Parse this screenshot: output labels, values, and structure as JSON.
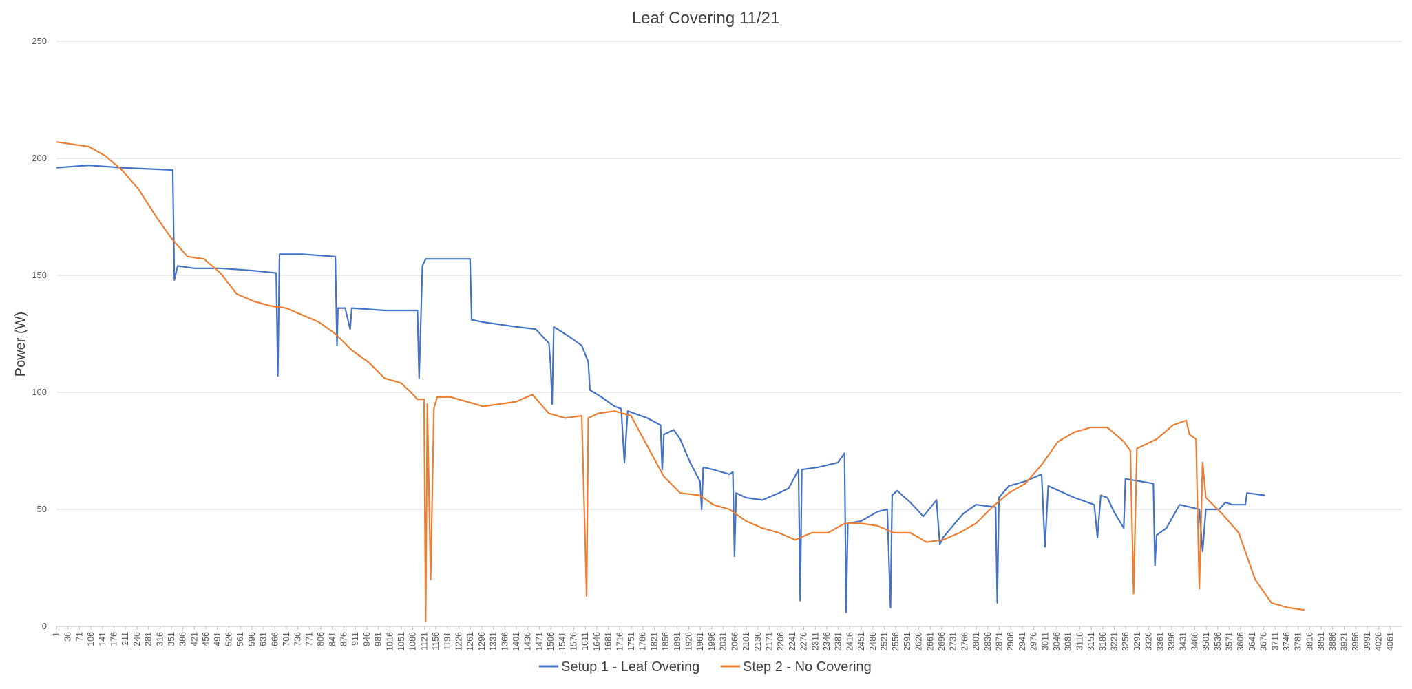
{
  "chart_data": {
    "type": "line",
    "title": "Leaf Covering 11/21",
    "ylabel": "Power (W)",
    "xlabel": "",
    "ylim": [
      0,
      250
    ],
    "yticks": [
      0,
      50,
      100,
      150,
      200,
      250
    ],
    "grid": "horizontal",
    "legend_position": "bottom",
    "x_range": [
      1,
      4096
    ],
    "x_tick_labels": [
      "1",
      "36",
      "71",
      "106",
      "141",
      "176",
      "211",
      "246",
      "281",
      "316",
      "351",
      "386",
      "421",
      "456",
      "491",
      "526",
      "561",
      "596",
      "631",
      "666",
      "701",
      "736",
      "771",
      "806",
      "841",
      "876",
      "911",
      "946",
      "981",
      "1016",
      "1051",
      "1086",
      "1121",
      "1156",
      "1191",
      "1226",
      "1261",
      "1296",
      "1331",
      "1366",
      "1401",
      "1436",
      "1471",
      "1506",
      "1541",
      "1576",
      "1611",
      "1646",
      "1681",
      "1716",
      "1751",
      "1786",
      "1821",
      "1856",
      "1891",
      "1926",
      "1961",
      "1996",
      "2031",
      "2066",
      "2101",
      "2136",
      "2171",
      "2206",
      "2241",
      "2276",
      "2311",
      "2346",
      "2381",
      "2416",
      "2451",
      "2486",
      "2521",
      "2556",
      "2591",
      "2626",
      "2661",
      "2696",
      "2731",
      "2766",
      "2801",
      "2836",
      "2871",
      "2906",
      "2941",
      "2976",
      "3011",
      "3046",
      "3081",
      "3116",
      "3151",
      "3186",
      "3221",
      "3256",
      "3291",
      "3326",
      "3361",
      "3396",
      "3431",
      "3466",
      "3501",
      "3536",
      "3571",
      "3606",
      "3641",
      "3676",
      "3711",
      "3746",
      "3781",
      "3816",
      "3851",
      "3886",
      "3921",
      "3956",
      "3991",
      "4026",
      "4061"
    ],
    "series": [
      {
        "name": "Setup 1 - Leaf Overing",
        "color": "#4472C4",
        "points": [
          [
            1,
            196
          ],
          [
            100,
            197
          ],
          [
            200,
            196
          ],
          [
            355,
            195
          ],
          [
            360,
            148
          ],
          [
            370,
            154
          ],
          [
            420,
            153
          ],
          [
            500,
            153
          ],
          [
            600,
            152
          ],
          [
            670,
            151
          ],
          [
            675,
            107
          ],
          [
            680,
            159
          ],
          [
            750,
            159
          ],
          [
            850,
            158
          ],
          [
            855,
            120
          ],
          [
            858,
            136
          ],
          [
            880,
            136
          ],
          [
            895,
            127
          ],
          [
            900,
            136
          ],
          [
            1000,
            135
          ],
          [
            1100,
            135
          ],
          [
            1105,
            106
          ],
          [
            1115,
            154
          ],
          [
            1125,
            157
          ],
          [
            1200,
            157
          ],
          [
            1260,
            157
          ],
          [
            1265,
            131
          ],
          [
            1300,
            130
          ],
          [
            1400,
            128
          ],
          [
            1460,
            127
          ],
          [
            1500,
            121
          ],
          [
            1505,
            112
          ],
          [
            1510,
            95
          ],
          [
            1515,
            128
          ],
          [
            1560,
            124
          ],
          [
            1600,
            120
          ],
          [
            1620,
            113
          ],
          [
            1625,
            101
          ],
          [
            1660,
            98
          ],
          [
            1700,
            94
          ],
          [
            1720,
            93
          ],
          [
            1730,
            70
          ],
          [
            1740,
            92
          ],
          [
            1800,
            89
          ],
          [
            1840,
            86
          ],
          [
            1845,
            67
          ],
          [
            1850,
            82
          ],
          [
            1880,
            84
          ],
          [
            1900,
            80
          ],
          [
            1930,
            70
          ],
          [
            1960,
            62
          ],
          [
            1965,
            50
          ],
          [
            1970,
            68
          ],
          [
            2000,
            67
          ],
          [
            2050,
            65
          ],
          [
            2060,
            66
          ],
          [
            2065,
            30
          ],
          [
            2070,
            57
          ],
          [
            2100,
            55
          ],
          [
            2150,
            54
          ],
          [
            2200,
            57
          ],
          [
            2230,
            59
          ],
          [
            2260,
            67
          ],
          [
            2265,
            11
          ],
          [
            2270,
            67
          ],
          [
            2320,
            68
          ],
          [
            2380,
            70
          ],
          [
            2400,
            74
          ],
          [
            2405,
            6
          ],
          [
            2410,
            44
          ],
          [
            2450,
            45
          ],
          [
            2500,
            49
          ],
          [
            2530,
            50
          ],
          [
            2540,
            8
          ],
          [
            2545,
            56
          ],
          [
            2560,
            58
          ],
          [
            2600,
            53
          ],
          [
            2640,
            47
          ],
          [
            2680,
            54
          ],
          [
            2690,
            35
          ],
          [
            2700,
            38
          ],
          [
            2760,
            48
          ],
          [
            2800,
            52
          ],
          [
            2860,
            51
          ],
          [
            2865,
            10
          ],
          [
            2870,
            55
          ],
          [
            2900,
            60
          ],
          [
            2950,
            62
          ],
          [
            3000,
            65
          ],
          [
            3010,
            34
          ],
          [
            3020,
            60
          ],
          [
            3100,
            55
          ],
          [
            3160,
            52
          ],
          [
            3170,
            38
          ],
          [
            3180,
            56
          ],
          [
            3200,
            55
          ],
          [
            3220,
            49
          ],
          [
            3250,
            42
          ],
          [
            3255,
            63
          ],
          [
            3300,
            62
          ],
          [
            3340,
            61
          ],
          [
            3345,
            26
          ],
          [
            3350,
            39
          ],
          [
            3380,
            42
          ],
          [
            3420,
            52
          ],
          [
            3450,
            51
          ],
          [
            3480,
            50
          ],
          [
            3490,
            32
          ],
          [
            3500,
            50
          ],
          [
            3540,
            50
          ],
          [
            3560,
            53
          ],
          [
            3580,
            52
          ],
          [
            3620,
            52
          ],
          [
            3625,
            57
          ],
          [
            3680,
            56
          ]
        ]
      },
      {
        "name": "Step 2 - No Covering",
        "color": "#ED7D31",
        "points": [
          [
            1,
            207
          ],
          [
            100,
            205
          ],
          [
            150,
            201
          ],
          [
            200,
            195
          ],
          [
            250,
            187
          ],
          [
            300,
            176
          ],
          [
            350,
            166
          ],
          [
            400,
            158
          ],
          [
            450,
            157
          ],
          [
            500,
            151
          ],
          [
            550,
            142
          ],
          [
            600,
            139
          ],
          [
            650,
            137
          ],
          [
            700,
            136
          ],
          [
            750,
            133
          ],
          [
            800,
            130
          ],
          [
            850,
            125
          ],
          [
            900,
            118
          ],
          [
            950,
            113
          ],
          [
            1000,
            106
          ],
          [
            1050,
            104
          ],
          [
            1080,
            100
          ],
          [
            1100,
            97
          ],
          [
            1120,
            97
          ],
          [
            1125,
            2
          ],
          [
            1130,
            95
          ],
          [
            1140,
            20
          ],
          [
            1150,
            93
          ],
          [
            1160,
            98
          ],
          [
            1200,
            98
          ],
          [
            1250,
            96
          ],
          [
            1300,
            94
          ],
          [
            1350,
            95
          ],
          [
            1400,
            96
          ],
          [
            1450,
            99
          ],
          [
            1500,
            91
          ],
          [
            1550,
            89
          ],
          [
            1600,
            90
          ],
          [
            1615,
            13
          ],
          [
            1620,
            89
          ],
          [
            1650,
            91
          ],
          [
            1700,
            92
          ],
          [
            1750,
            90
          ],
          [
            1800,
            77
          ],
          [
            1850,
            64
          ],
          [
            1900,
            57
          ],
          [
            1960,
            56
          ],
          [
            2000,
            52
          ],
          [
            2050,
            50
          ],
          [
            2100,
            45
          ],
          [
            2150,
            42
          ],
          [
            2200,
            40
          ],
          [
            2250,
            37
          ],
          [
            2300,
            40
          ],
          [
            2350,
            40
          ],
          [
            2400,
            44
          ],
          [
            2450,
            44
          ],
          [
            2500,
            43
          ],
          [
            2550,
            40
          ],
          [
            2600,
            40
          ],
          [
            2650,
            36
          ],
          [
            2700,
            37
          ],
          [
            2750,
            40
          ],
          [
            2800,
            44
          ],
          [
            2850,
            51
          ],
          [
            2900,
            57
          ],
          [
            2950,
            61
          ],
          [
            3000,
            69
          ],
          [
            3050,
            79
          ],
          [
            3100,
            83
          ],
          [
            3150,
            85
          ],
          [
            3200,
            85
          ],
          [
            3250,
            79
          ],
          [
            3270,
            75
          ],
          [
            3280,
            14
          ],
          [
            3290,
            76
          ],
          [
            3350,
            80
          ],
          [
            3400,
            86
          ],
          [
            3440,
            88
          ],
          [
            3450,
            82
          ],
          [
            3470,
            80
          ],
          [
            3480,
            16
          ],
          [
            3490,
            70
          ],
          [
            3500,
            55
          ],
          [
            3550,
            48
          ],
          [
            3600,
            40
          ],
          [
            3650,
            20
          ],
          [
            3700,
            10
          ],
          [
            3750,
            8
          ],
          [
            3800,
            7
          ]
        ]
      }
    ]
  }
}
